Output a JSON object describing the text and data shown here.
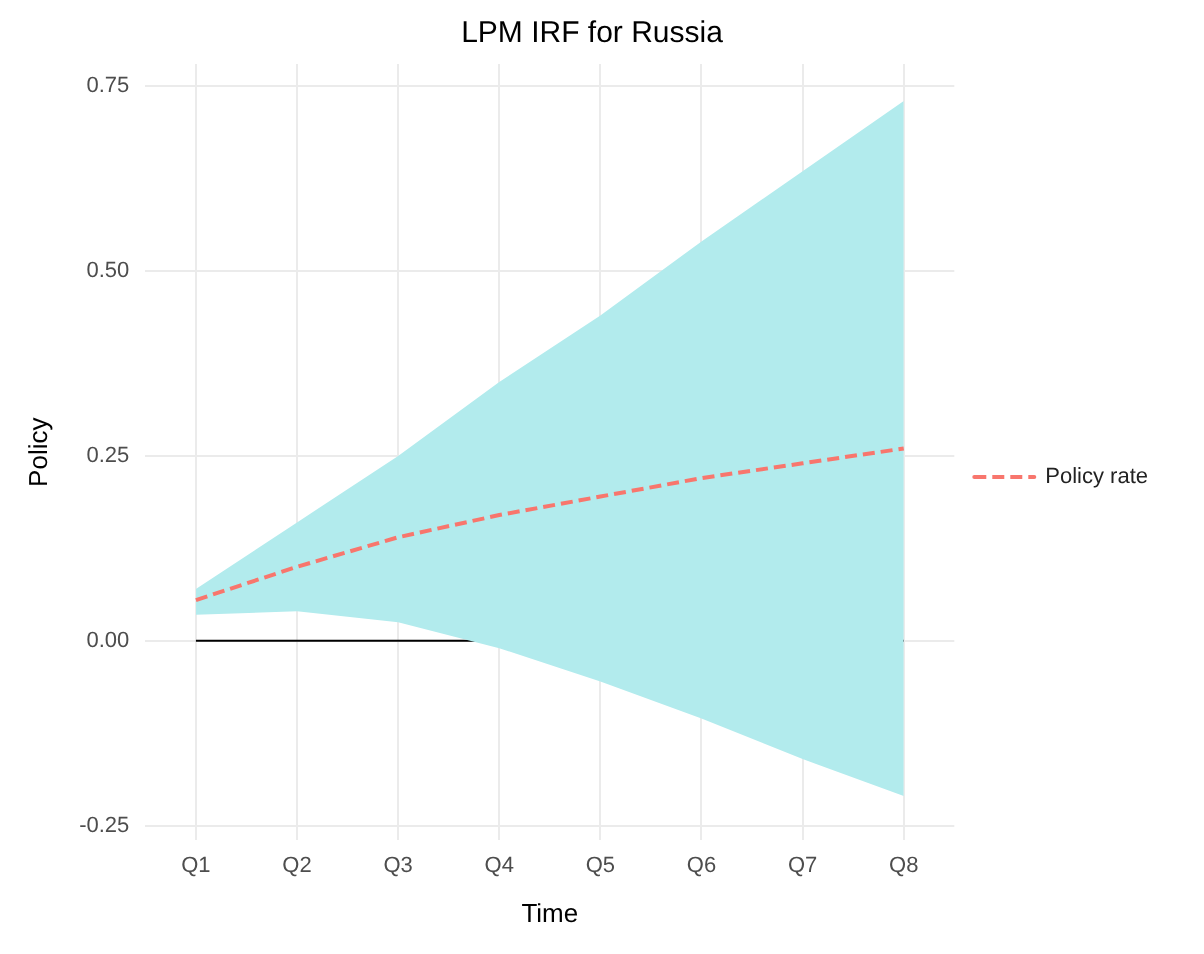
{
  "chart_data": {
    "type": "line",
    "title": "LPM IRF for Russia",
    "xlabel": "Time",
    "ylabel": "Policy",
    "categories": [
      "Q1",
      "Q2",
      "Q3",
      "Q4",
      "Q5",
      "Q6",
      "Q7",
      "Q8"
    ],
    "series": [
      {
        "name": "Policy rate",
        "color": "#f8766d",
        "line_style": "dashed",
        "values": [
          0.055,
          0.1,
          0.14,
          0.17,
          0.195,
          0.22,
          0.24,
          0.26
        ],
        "lower": [
          0.035,
          0.04,
          0.025,
          -0.01,
          -0.055,
          -0.105,
          -0.16,
          -0.21
        ],
        "upper": [
          0.07,
          0.16,
          0.25,
          0.35,
          0.44,
          0.54,
          0.635,
          0.73
        ]
      }
    ],
    "ylim": [
      -0.27,
      0.78
    ],
    "yticks": [
      {
        "value": -0.25,
        "label": "-0.25"
      },
      {
        "value": 0,
        "label": "0.00"
      },
      {
        "value": 0.25,
        "label": "0.25"
      },
      {
        "value": 0.5,
        "label": "0.50"
      },
      {
        "value": 0.75,
        "label": "0.75"
      }
    ],
    "ref_lines": [
      {
        "axis": "y",
        "value": 0,
        "color": "#000000"
      }
    ],
    "grid": true,
    "legend": "right",
    "marker": "none"
  }
}
